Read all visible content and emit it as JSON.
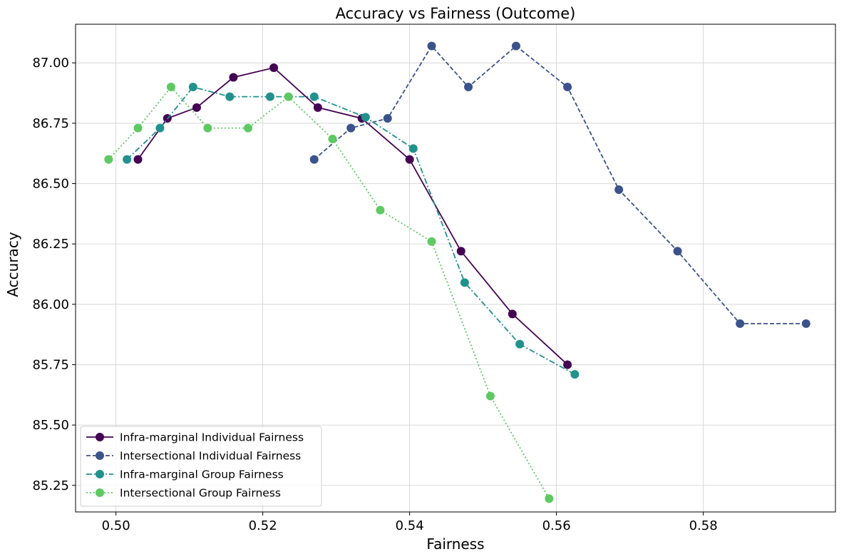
{
  "chart_data": {
    "type": "line",
    "title": "Accuracy vs Fairness (Outcome)",
    "xlabel": "Fairness",
    "ylabel": "Accuracy",
    "xlim": [
      0.4945,
      0.598
    ],
    "ylim": [
      85.14,
      87.16
    ],
    "xticks": [
      0.5,
      0.52,
      0.54,
      0.56,
      0.58
    ],
    "xtick_labels": [
      "0.50",
      "0.52",
      "0.54",
      "0.56",
      "0.58"
    ],
    "yticks": [
      85.25,
      85.5,
      85.75,
      86.0,
      86.25,
      86.5,
      86.75,
      87.0
    ],
    "ytick_labels": [
      "85.25",
      "85.50",
      "85.75",
      "86.00",
      "86.25",
      "86.50",
      "86.75",
      "87.00"
    ],
    "grid": true,
    "legend_position": "lower-left",
    "series": [
      {
        "name": "Infra-marginal Individual Fairness",
        "color": "#440154",
        "line_style": "solid",
        "x": [
          0.503,
          0.507,
          0.511,
          0.516,
          0.5215,
          0.5275,
          0.5335,
          0.54,
          0.547,
          0.554,
          0.5615
        ],
        "y": [
          86.6,
          86.77,
          86.815,
          86.94,
          86.98,
          86.815,
          86.77,
          86.6,
          86.22,
          85.96,
          85.75
        ]
      },
      {
        "name": "Intersectional Individual Fairness",
        "color": "#3b528b",
        "line_style": "dashed",
        "x": [
          0.527,
          0.532,
          0.537,
          0.543,
          0.548,
          0.5545,
          0.5615,
          0.5685,
          0.5765,
          0.585,
          0.594
        ],
        "y": [
          86.6,
          86.73,
          86.77,
          87.07,
          86.9,
          87.07,
          86.9,
          86.475,
          86.22,
          85.92,
          85.92
        ]
      },
      {
        "name": "Infra-marginal Group Fairness",
        "color": "#21918c",
        "line_style": "dashdot",
        "x": [
          0.5015,
          0.506,
          0.5105,
          0.5155,
          0.521,
          0.527,
          0.534,
          0.5405,
          0.5475,
          0.555,
          0.5625
        ],
        "y": [
          86.6,
          86.73,
          86.9,
          86.86,
          86.86,
          86.86,
          86.775,
          86.645,
          86.09,
          85.835,
          85.71
        ]
      },
      {
        "name": "Intersectional Group Fairness",
        "color": "#5ec962",
        "line_style": "dotted",
        "x": [
          0.499,
          0.503,
          0.5075,
          0.5125,
          0.518,
          0.5235,
          0.5295,
          0.536,
          0.543,
          0.551,
          0.559
        ],
        "y": [
          86.6,
          86.73,
          86.9,
          86.73,
          86.73,
          86.86,
          86.685,
          86.39,
          86.26,
          85.62,
          85.195
        ]
      }
    ]
  }
}
